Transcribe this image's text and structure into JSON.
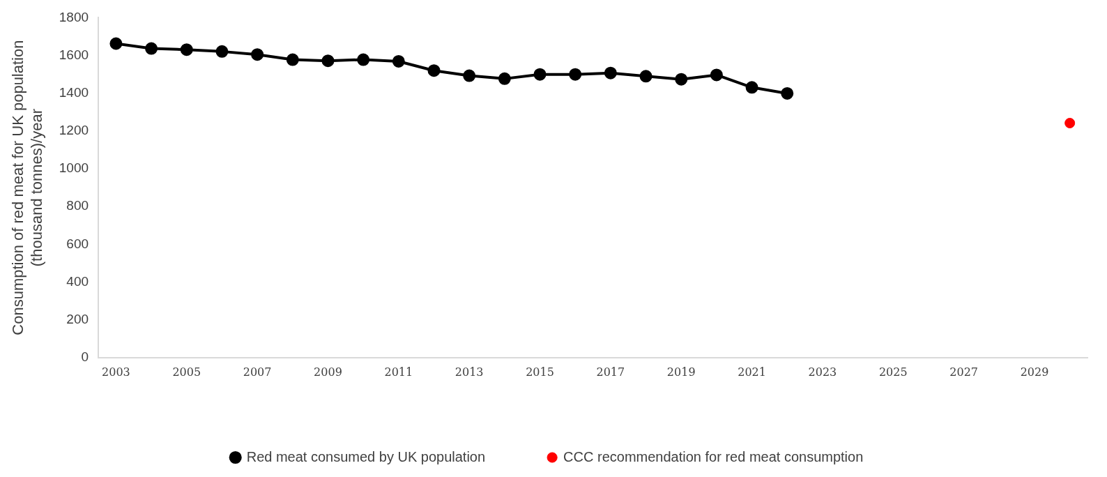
{
  "chart_data": {
    "type": "line",
    "ylabel": "Consumption of red meat for UK population (thousand tonnes)/year",
    "categories": [
      "2003",
      null,
      "2005",
      null,
      "2007",
      null,
      "2009",
      null,
      "2011",
      null,
      "2013",
      null,
      "2015",
      null,
      "2017",
      null,
      "2019",
      null,
      "2021",
      null,
      "2023",
      null,
      "2025",
      null,
      "2027",
      null,
      "2029",
      null
    ],
    "series": [
      {
        "name": "Red meat consumed by UK population",
        "color": "#000000",
        "values": [
          1663,
          1637,
          1631,
          1621,
          1605,
          1578,
          1572,
          1578,
          1569,
          1520,
          1493,
          1477,
          1500,
          1500,
          1507,
          1490,
          1474,
          1497,
          1431,
          1399,
          null,
          null,
          null,
          null,
          null,
          null,
          null,
          null
        ]
      },
      {
        "name": "CCC recommendation for red meat consumption",
        "type": "scatter",
        "color": "#ff0000",
        "values": [
          null,
          null,
          null,
          null,
          null,
          null,
          null,
          null,
          null,
          null,
          null,
          null,
          null,
          null,
          null,
          null,
          null,
          null,
          null,
          null,
          null,
          null,
          null,
          null,
          null,
          null,
          null,
          1242
        ]
      }
    ],
    "ylim": [
      0,
      1800
    ],
    "yticks": [
      0,
      200,
      400,
      600,
      800,
      1000,
      1200,
      1400,
      1600,
      1800
    ],
    "grid": false,
    "legend": "bottom",
    "marker": "circle"
  }
}
